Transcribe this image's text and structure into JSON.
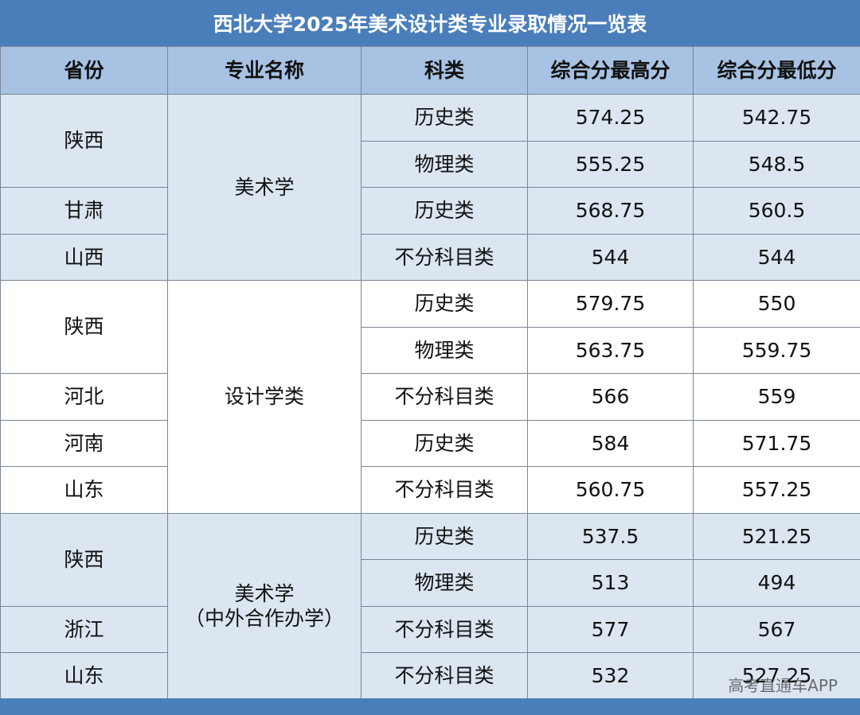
{
  "title": "西北大学2025年美术设计类专业录取情况一览表",
  "header": [
    "省份",
    "专业名称",
    "科类",
    "综合分最高分",
    "综合分最低分"
  ],
  "groups": [
    {
      "major": [
        "美术学"
      ],
      "provinces": [
        {
          "name": "陕西",
          "rows": [
            {
              "category": "历史类",
              "max": "574.25",
              "min": "542.75"
            },
            {
              "category": "物理类",
              "max": "555.25",
              "min": "548.5"
            }
          ]
        },
        {
          "name": "甘肃",
          "rows": [
            {
              "category": "历史类",
              "max": "568.75",
              "min": "560.5"
            }
          ]
        },
        {
          "name": "山西",
          "rows": [
            {
              "category": "不分科目类",
              "max": "544",
              "min": "544"
            }
          ]
        }
      ]
    },
    {
      "major": [
        "设计学类"
      ],
      "provinces": [
        {
          "name": "陕西",
          "rows": [
            {
              "category": "历史类",
              "max": "579.75",
              "min": "550"
            },
            {
              "category": "物理类",
              "max": "563.75",
              "min": "559.75"
            }
          ]
        },
        {
          "name": "河北",
          "rows": [
            {
              "category": "不分科目类",
              "max": "566",
              "min": "559"
            }
          ]
        },
        {
          "name": "河南",
          "rows": [
            {
              "category": "历史类",
              "max": "584",
              "min": "571.75"
            }
          ]
        },
        {
          "name": "山东",
          "rows": [
            {
              "category": "不分科目类",
              "max": "560.75",
              "min": "557.25"
            }
          ]
        }
      ]
    },
    {
      "major": [
        "美术学",
        "（中外合作办学）"
      ],
      "provinces": [
        {
          "name": "陕西",
          "rows": [
            {
              "category": "历史类",
              "max": "537.5",
              "min": "521.25"
            },
            {
              "category": "物理类",
              "max": "513",
              "min": "494"
            }
          ]
        },
        {
          "name": "浙江",
          "rows": [
            {
              "category": "不分科目类",
              "max": "577",
              "min": "567"
            }
          ]
        },
        {
          "name": "山东",
          "rows": [
            {
              "category": "不分科目类",
              "max": "532",
              "min": "527.25"
            }
          ]
        }
      ]
    }
  ],
  "watermark": "高考直通车APP"
}
